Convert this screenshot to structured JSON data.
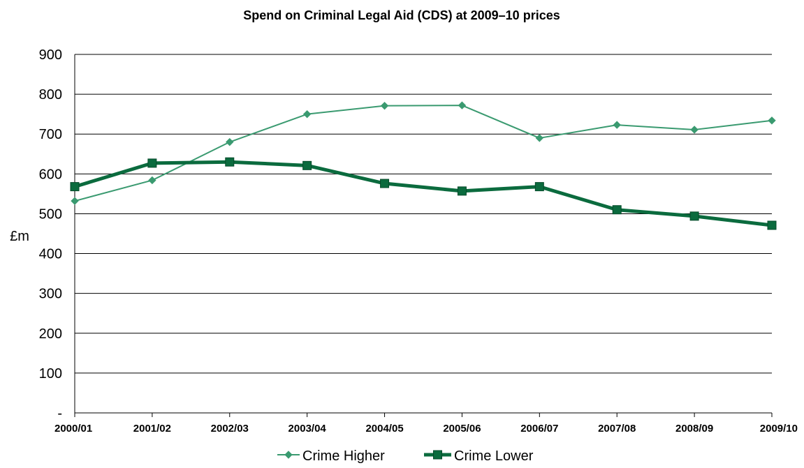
{
  "chart_data": {
    "type": "line",
    "title": "Spend on Criminal Legal Aid (CDS) at 2009–10 prices",
    "xlabel": "",
    "ylabel": "£m",
    "categories": [
      "2000/01",
      "2001/02",
      "2002/03",
      "2003/04",
      "2004/05",
      "2005/06",
      "2006/07",
      "2007/08",
      "2008/09",
      "2009/10"
    ],
    "ylim": [
      0,
      900
    ],
    "yticks": [
      0,
      100,
      200,
      300,
      400,
      500,
      600,
      700,
      800,
      900
    ],
    "ytick_labels": [
      "-",
      "100",
      "200",
      "300",
      "400",
      "500",
      "600",
      "700",
      "800",
      "900"
    ],
    "grid": true,
    "legend_position": "bottom",
    "series": [
      {
        "name": "Crime Higher",
        "marker": "diamond",
        "color": "#3a9a70",
        "values": [
          532,
          584,
          680,
          750,
          771,
          772,
          690,
          723,
          711,
          734
        ]
      },
      {
        "name": "Crime Lower",
        "marker": "square",
        "color": "#0b6b3e",
        "values": [
          568,
          627,
          630,
          621,
          576,
          557,
          568,
          510,
          494,
          471
        ]
      }
    ]
  }
}
